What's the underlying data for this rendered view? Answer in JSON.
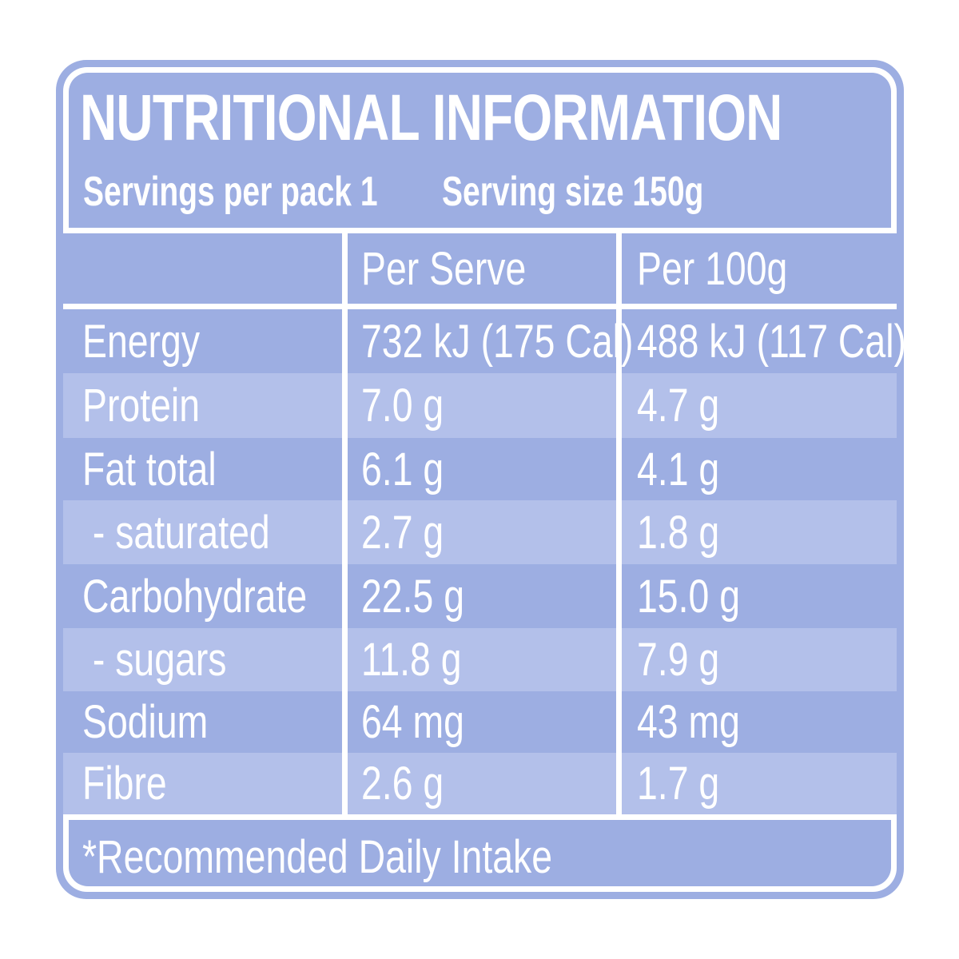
{
  "title": "NUTRITIONAL INFORMATION",
  "servings_per_pack": "Servings per pack 1",
  "serving_size": "Serving size 150g",
  "columns": [
    "",
    "Per Serve",
    "Per 100g"
  ],
  "rows": [
    {
      "nutrient": "Energy",
      "per_serve": "732 kJ (175 Cal)",
      "per_100g": "488 kJ (117 Cal)"
    },
    {
      "nutrient": "Protein",
      "per_serve": "7.0 g",
      "per_100g": "4.7 g"
    },
    {
      "nutrient": "Fat total",
      "per_serve": "6.1 g",
      "per_100g": "4.1 g"
    },
    {
      "nutrient": " - saturated",
      "per_serve": "2.7 g",
      "per_100g": "1.8 g"
    },
    {
      "nutrient": "Carbohydrate",
      "per_serve": "22.5 g",
      "per_100g": "15.0 g"
    },
    {
      "nutrient": " - sugars",
      "per_serve": "11.8 g",
      "per_100g": "7.9 g"
    },
    {
      "nutrient": "Sodium",
      "per_serve": "64 mg",
      "per_100g": "43 mg"
    },
    {
      "nutrient": "Fibre",
      "per_serve": "2.6 g",
      "per_100g": "1.7 g"
    }
  ],
  "footnote": "*Recommended Daily Intake",
  "colors": {
    "panel": "#9daee2",
    "stripe": "#b3c0ea",
    "text": "#ffffff",
    "lines": "#ffffff"
  }
}
